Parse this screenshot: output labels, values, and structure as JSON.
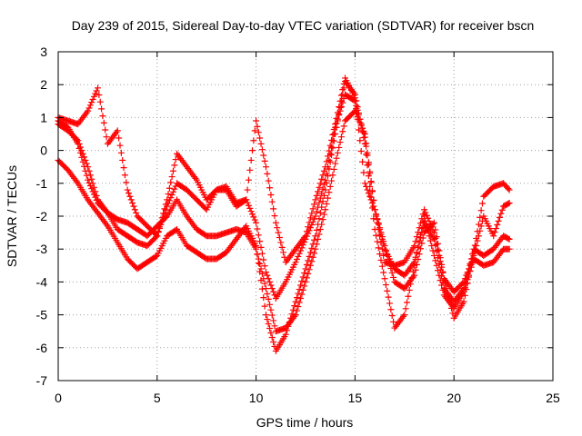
{
  "chart_data": {
    "type": "scatter",
    "title": "Day 239 of 2015, Sidereal Day-to-day VTEC variation (SDTVAR) for receiver bscn",
    "xlabel": "GPS time / hours",
    "ylabel": "SDTVAR / TECUs",
    "xlim": [
      0,
      25
    ],
    "ylim": [
      -7,
      3
    ],
    "x_ticks": [
      0,
      5,
      10,
      15,
      20,
      25
    ],
    "y_ticks": [
      3,
      2,
      1,
      0,
      -1,
      -2,
      -3,
      -4,
      -5,
      -6,
      -7
    ],
    "grid": true,
    "marker": "+",
    "color": "#ff0000",
    "series": [
      {
        "x": [
          0,
          0.5,
          1,
          1.5,
          2,
          2.5,
          3,
          3.5,
          4,
          4.5,
          5,
          5.5,
          6,
          6.5,
          7,
          7.5,
          8,
          8.5,
          9,
          9.5,
          10,
          10.5,
          11,
          11.5,
          12,
          12.5,
          13,
          13.5,
          14,
          14.5,
          15,
          15.5,
          16,
          16.5,
          17,
          17.5,
          18,
          18.5,
          19,
          19.5,
          20,
          20.5,
          21,
          21.5,
          22,
          22.5,
          22.8
        ],
        "y": [
          0.8,
          0.6,
          0.3,
          -0.5,
          -1.5,
          -1.9,
          -2.1,
          -2.2,
          -2.4,
          -2.6,
          -2.3,
          -2.0,
          -1.5,
          -2.0,
          -2.4,
          -2.6,
          -2.6,
          -2.5,
          -2.4,
          -2.5,
          -3.0,
          -4.2,
          -5.5,
          -5.4,
          -5.0,
          -4.0,
          -3.0,
          -1.8,
          -0.4,
          0.9,
          1.2,
          0.5,
          -1.8,
          -3.0,
          -3.6,
          -3.8,
          -3.4,
          -2.2,
          -2.7,
          -4.2,
          -4.6,
          -4.2,
          -3.0,
          -3.2,
          -3.0,
          -2.6,
          -2.7
        ]
      },
      {
        "x": [
          0,
          0.5,
          1,
          1.5,
          2,
          2.5,
          3,
          3.5,
          4,
          4.5,
          5,
          5.5,
          6,
          6.5,
          7,
          7.5,
          8,
          8.5,
          9,
          9.5,
          10,
          10.5,
          11,
          11.5,
          12,
          12.5,
          13,
          13.5,
          14,
          14.5,
          15,
          15.5,
          16,
          16.5,
          17,
          17.5,
          18,
          18.5,
          19,
          19.5,
          20,
          20.5,
          21,
          21.5,
          22,
          22.5,
          22.8
        ],
        "y": [
          0.9,
          0.7,
          0.2,
          -0.9,
          -1.6,
          -1.9,
          -2.4,
          -2.6,
          -2.8,
          -2.9,
          -2.6,
          -1.7,
          -1.0,
          -1.2,
          -1.5,
          -1.8,
          -1.2,
          -1.2,
          -1.7,
          -1.5,
          -2.2,
          -3.7,
          -4.5,
          -4.0,
          -3.4,
          -2.7,
          -2.0,
          -0.9,
          0.7,
          1.7,
          1.5,
          0.4,
          -1.8,
          -2.9,
          -4.0,
          -4.2,
          -3.8,
          -2.5,
          -2.2,
          -3.9,
          -4.3,
          -4.0,
          -3.2,
          -2.0,
          -2.6,
          -1.7,
          -1.6
        ]
      },
      {
        "x": [
          0,
          0.5,
          1,
          1.5,
          2,
          2.5,
          3,
          3.5,
          4,
          4.5,
          5,
          5.5,
          6,
          6.5,
          7,
          7.5,
          8,
          8.5,
          9,
          9.5,
          10,
          10.5,
          11,
          11.5,
          12,
          12.5,
          13,
          13.5,
          14,
          14.5,
          15,
          15.5,
          16,
          16.5,
          17,
          17.5,
          18,
          18.5,
          19,
          19.5,
          20,
          20.5,
          21,
          21.5,
          22,
          22.5,
          22.8
        ],
        "y": [
          -0.3,
          -0.6,
          -1.0,
          -1.5,
          -1.9,
          -2.3,
          -2.8,
          -3.3,
          -3.6,
          -3.4,
          -3.2,
          -2.6,
          -2.4,
          -2.9,
          -3.1,
          -3.3,
          -3.3,
          -3.1,
          -2.7,
          -2.3,
          -2.9,
          -5.0,
          -6.1,
          -5.6,
          -4.6,
          -3.6,
          -2.6,
          -1.2,
          0.5,
          2.1,
          1.7,
          0.2,
          -2.4,
          -3.9,
          -5.4,
          -5.0,
          -3.5,
          -2.0,
          -3.2,
          -4.4,
          -4.8,
          -4.3,
          -3.3,
          -3.5,
          -3.4,
          -3.0,
          -3.0
        ]
      },
      {
        "x": [
          0,
          0.5,
          1,
          1.5,
          2,
          2.5,
          3,
          3.5,
          4,
          4.5,
          5,
          5.5,
          6,
          6.5,
          7,
          7.5,
          8,
          8.5,
          9,
          9.5,
          10,
          10.5,
          11,
          11.5,
          12,
          12.5,
          13,
          13.5,
          14,
          14.5,
          15,
          15.5,
          16,
          16.5,
          17,
          17.5,
          18,
          18.5,
          19,
          19.5,
          20,
          20.5,
          21,
          21.5,
          22,
          22.5,
          22.8
        ],
        "y": [
          1.0,
          0.9,
          0.8,
          1.2,
          1.9,
          0.2,
          0.6,
          -1.2,
          -2.0,
          -2.3,
          -2.6,
          -1.5,
          -0.1,
          -0.5,
          -0.9,
          -1.5,
          -1.2,
          -1.1,
          -1.6,
          -1.5,
          0.9,
          -0.5,
          -2.2,
          -3.4,
          -3.0,
          -2.6,
          -1.5,
          -0.5,
          0.8,
          2.2,
          1.6,
          -1.0,
          -1.8,
          -3.4,
          -3.5,
          -3.4,
          -2.9,
          -1.8,
          -2.5,
          -3.9,
          -5.1,
          -4.6,
          -3.1,
          -1.4,
          -1.1,
          -1.0,
          -1.2
        ]
      }
    ]
  }
}
